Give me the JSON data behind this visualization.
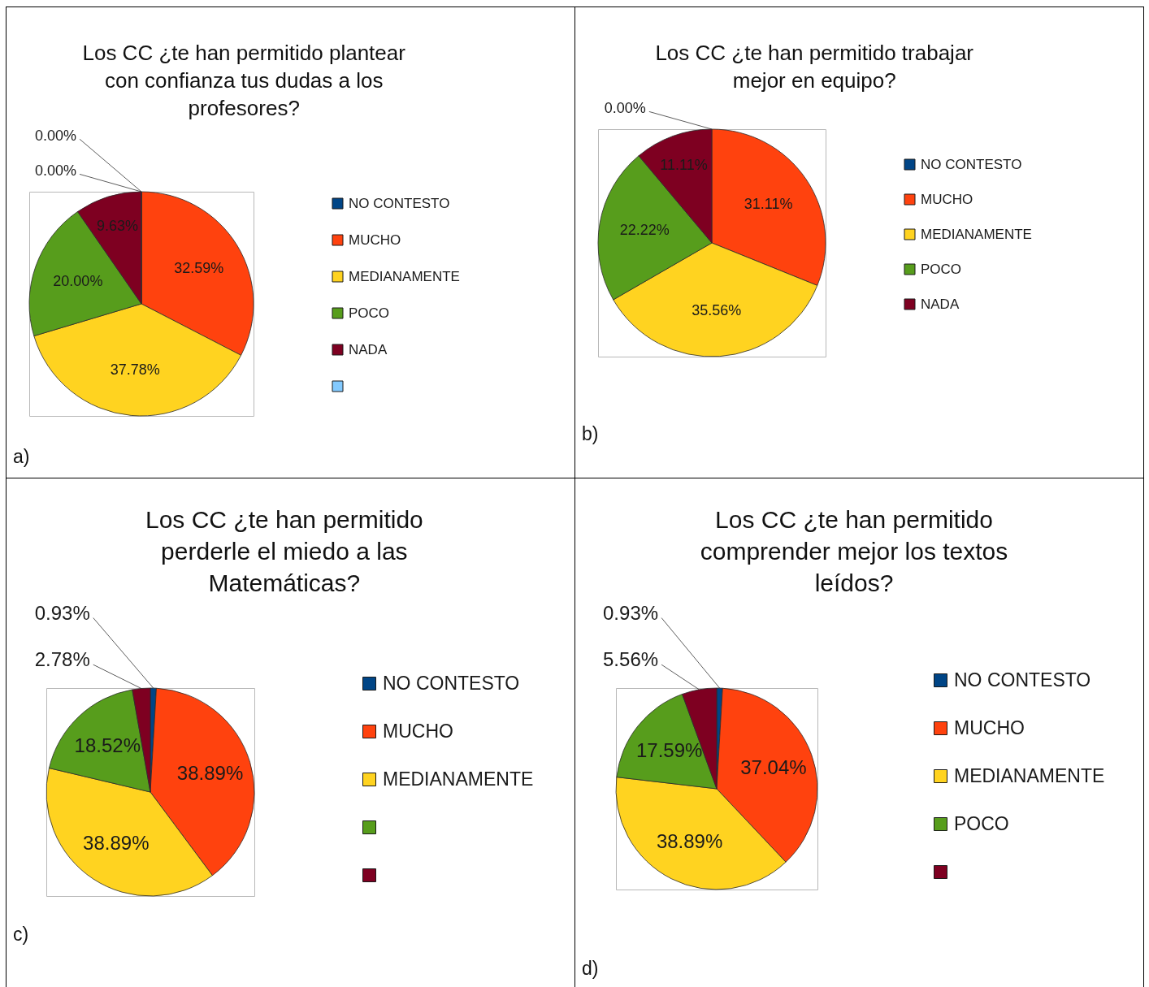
{
  "chart_data": [
    {
      "type": "pie",
      "title": "Los CC ¿te han permitido plantear con confianza tus dudas a los profesores?",
      "categories": [
        "NO CONTESTO",
        "MUCHO",
        "MEDIANAMENTE",
        "POCO",
        "NADA",
        null
      ],
      "values": [
        0,
        32.59,
        37.78,
        20,
        9.63,
        0
      ],
      "colors": [
        "#004586",
        "#ff420e",
        "#ffd320",
        "#579d1c",
        "#7e0021",
        "#83caff"
      ],
      "value_labels": [
        "0.00%",
        "32.59%",
        "37.78%",
        "20.00%",
        "9.63%",
        "0.00%"
      ],
      "legend": "right",
      "annotations": [
        "a)"
      ]
    },
    {
      "type": "pie",
      "title": "Los CC ¿te han permitido trabajar mejor en equipo?",
      "categories": [
        "NO CONTESTO",
        "MUCHO",
        "MEDIANAMENTE",
        "POCO",
        "NADA"
      ],
      "values": [
        0,
        31.11,
        35.56,
        22.22,
        11.11
      ],
      "colors": [
        "#004586",
        "#ff420e",
        "#ffd320",
        "#579d1c",
        "#7e0021"
      ],
      "value_labels": [
        "0.00%",
        "31.11%",
        "35.56%",
        "22.22%",
        "11.11%"
      ],
      "legend": "right",
      "annotations": [
        "b)"
      ]
    },
    {
      "type": "pie",
      "title": "Los CC ¿te han permitido perderle el miedo a las Matemáticas?",
      "categories": [
        "NO CONTESTO",
        "MUCHO",
        "MEDIANAMENTE",
        null,
        null
      ],
      "values": [
        0.93,
        38.89,
        38.89,
        18.52,
        2.78
      ],
      "colors": [
        "#004586",
        "#ff420e",
        "#ffd320",
        "#579d1c",
        "#7e0021"
      ],
      "value_labels": [
        "0.93%",
        "38.89%",
        "38.89%",
        "18.52%",
        "2.78%"
      ],
      "legend": "right",
      "annotations": [
        "c)"
      ]
    },
    {
      "type": "pie",
      "title": "Los CC ¿te han permitido comprender mejor los textos leídos?",
      "categories": [
        "NO CONTESTO",
        "MUCHO",
        "MEDIANAMENTE",
        "POCO",
        null
      ],
      "values": [
        0.93,
        37.04,
        38.89,
        17.59,
        5.56
      ],
      "colors": [
        "#004586",
        "#ff420e",
        "#ffd320",
        "#579d1c",
        "#7e0021"
      ],
      "value_labels": [
        "0.93%",
        "37.04%",
        "38.89%",
        "17.59%",
        "5.56%"
      ],
      "legend": "right",
      "annotations": [
        "d)"
      ]
    }
  ]
}
